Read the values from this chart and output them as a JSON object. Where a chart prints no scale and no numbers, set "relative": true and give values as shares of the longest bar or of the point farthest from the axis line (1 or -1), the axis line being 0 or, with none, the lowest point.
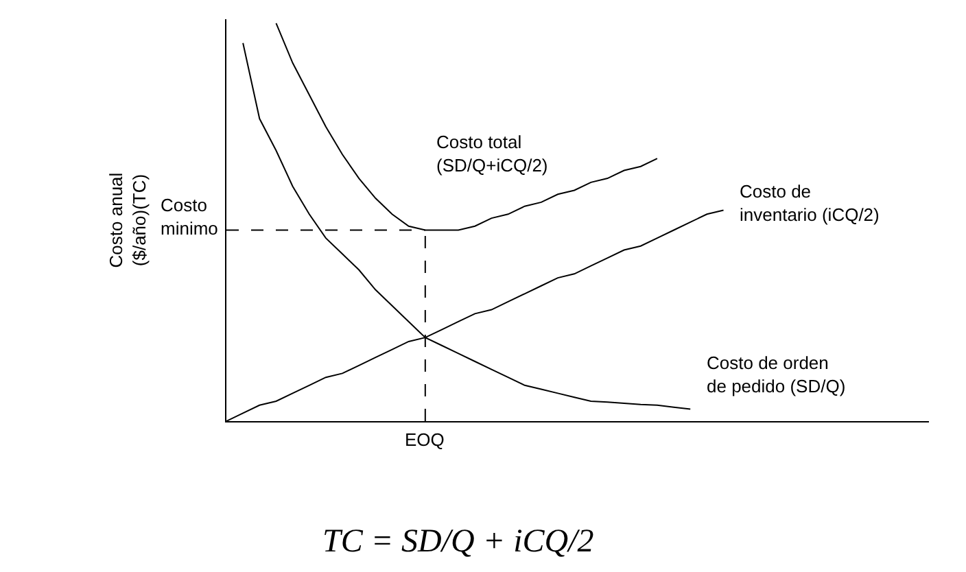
{
  "chart_data": {
    "type": "line",
    "relative": true,
    "ylabel": "Costo anual\n($/año)(TC)",
    "categories": [
      null,
      null,
      null,
      null,
      null,
      null,
      null,
      null,
      null,
      null,
      null,
      null,
      null,
      null,
      null,
      null,
      null,
      null,
      null,
      null,
      null,
      null,
      null,
      null,
      null,
      null,
      null,
      null,
      null,
      null,
      null
    ],
    "series": [
      {
        "name": "Costo total\n(SD/Q+iCQ/2)",
        "color": "#000000",
        "values": [
          null,
          null,
          null,
          1.0,
          0.9,
          0.82,
          0.74,
          0.67,
          0.61,
          0.56,
          0.52,
          0.49,
          0.48,
          0.48,
          0.48,
          0.49,
          0.51,
          0.52,
          0.54,
          0.55,
          0.57,
          0.58,
          0.6,
          0.61,
          0.63,
          0.64,
          0.66,
          null,
          null,
          null,
          null
        ]
      },
      {
        "name": "Costo de\ninventario (iCQ/2)",
        "color": "#000000",
        "values": [
          0,
          0.02,
          0.04,
          0.05,
          0.07,
          0.09,
          0.11,
          0.12,
          0.14,
          0.16,
          0.18,
          0.2,
          0.21,
          0.23,
          0.25,
          0.27,
          0.28,
          0.3,
          0.32,
          0.34,
          0.36,
          0.37,
          0.39,
          0.41,
          0.43,
          0.44,
          0.46,
          0.48,
          0.5,
          0.52,
          0.53
        ]
      },
      {
        "name": "Costo de orden\nde pedido (SD/Q)",
        "color": "#000000",
        "values": [
          null,
          0.95,
          0.76,
          0.68,
          0.59,
          0.52,
          0.46,
          0.42,
          0.38,
          0.33,
          0.29,
          0.25,
          0.21,
          0.19,
          0.17,
          0.15,
          0.13,
          0.11,
          0.09,
          0.08,
          0.07,
          0.06,
          0.05,
          0.048,
          0.045,
          0.042,
          0.04,
          0.035,
          0.03,
          null,
          null
        ]
      }
    ],
    "ref_lines": [
      {
        "axis": "y",
        "value": 0.48,
        "label": "Costo\nminimo",
        "line_style": "dashed"
      }
    ],
    "annotations": [
      "EOQ",
      "TC = SD/Q + iCQ/2"
    ],
    "legend": false,
    "marker": "none",
    "line_style": "solid"
  }
}
